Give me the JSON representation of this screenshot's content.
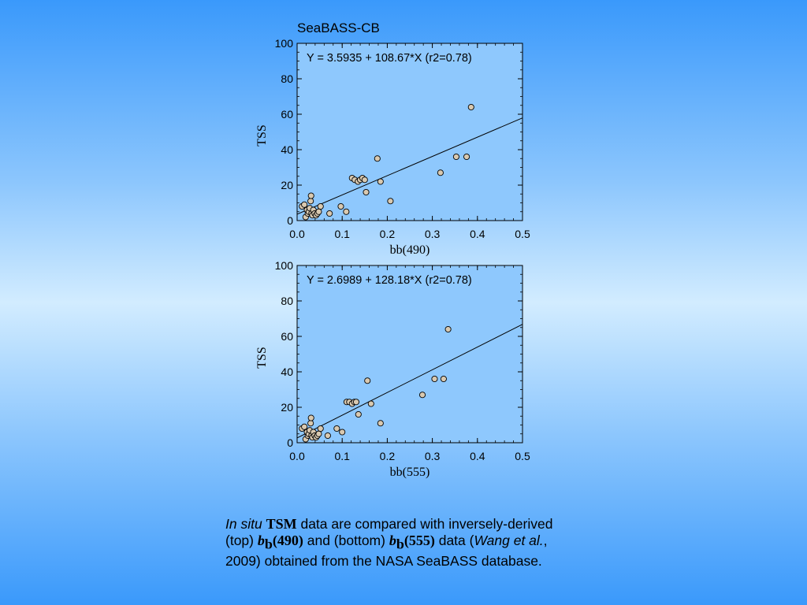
{
  "chart_data": [
    {
      "type": "scatter",
      "title": "SeaBASS-CB",
      "xlabel": "bb(490)",
      "ylabel": "TSS",
      "xlim": [
        0.0,
        0.5
      ],
      "ylim": [
        0,
        100
      ],
      "xticks": [
        "0.0",
        "0.1",
        "0.2",
        "0.3",
        "0.4",
        "0.5"
      ],
      "yticks": [
        "0",
        "20",
        "40",
        "60",
        "80",
        "100"
      ],
      "annotation": "Y = 3.5935 + 108.67*X (r2=0.78)",
      "fit": {
        "intercept": 3.5935,
        "slope": 108.67
      },
      "points": [
        [
          0.011,
          8
        ],
        [
          0.016,
          9
        ],
        [
          0.019,
          2
        ],
        [
          0.022,
          6
        ],
        [
          0.024,
          4
        ],
        [
          0.026,
          5
        ],
        [
          0.028,
          7
        ],
        [
          0.03,
          11
        ],
        [
          0.031,
          14
        ],
        [
          0.032,
          4
        ],
        [
          0.034,
          3
        ],
        [
          0.036,
          6
        ],
        [
          0.039,
          4
        ],
        [
          0.042,
          3
        ],
        [
          0.045,
          4
        ],
        [
          0.048,
          5
        ],
        [
          0.052,
          8
        ],
        [
          0.072,
          4
        ],
        [
          0.097,
          8
        ],
        [
          0.109,
          5
        ],
        [
          0.122,
          24
        ],
        [
          0.128,
          23
        ],
        [
          0.135,
          22
        ],
        [
          0.14,
          23
        ],
        [
          0.145,
          24
        ],
        [
          0.15,
          23
        ],
        [
          0.153,
          16
        ],
        [
          0.178,
          35
        ],
        [
          0.185,
          22
        ],
        [
          0.207,
          11
        ],
        [
          0.318,
          27
        ],
        [
          0.353,
          36
        ],
        [
          0.376,
          36
        ],
        [
          0.386,
          64
        ]
      ]
    },
    {
      "type": "scatter",
      "title": "",
      "xlabel": "bb(555)",
      "ylabel": "TSS",
      "xlim": [
        0.0,
        0.5
      ],
      "ylim": [
        0,
        100
      ],
      "xticks": [
        "0.0",
        "0.1",
        "0.2",
        "0.3",
        "0.4",
        "0.5"
      ],
      "yticks": [
        "0",
        "20",
        "40",
        "60",
        "80",
        "100"
      ],
      "annotation": "Y = 2.6989 + 128.18*X (r2=0.78)",
      "fit": {
        "intercept": 2.6989,
        "slope": 128.18
      },
      "points": [
        [
          0.011,
          8
        ],
        [
          0.016,
          9
        ],
        [
          0.019,
          2
        ],
        [
          0.022,
          6
        ],
        [
          0.024,
          4
        ],
        [
          0.026,
          5
        ],
        [
          0.028,
          7
        ],
        [
          0.03,
          11
        ],
        [
          0.031,
          14
        ],
        [
          0.032,
          4
        ],
        [
          0.034,
          3
        ],
        [
          0.036,
          6
        ],
        [
          0.039,
          4
        ],
        [
          0.042,
          3
        ],
        [
          0.045,
          4
        ],
        [
          0.048,
          5
        ],
        [
          0.052,
          8
        ],
        [
          0.068,
          4
        ],
        [
          0.088,
          8
        ],
        [
          0.1,
          6
        ],
        [
          0.11,
          23
        ],
        [
          0.116,
          23
        ],
        [
          0.122,
          22
        ],
        [
          0.127,
          23
        ],
        [
          0.131,
          23
        ],
        [
          0.136,
          16
        ],
        [
          0.156,
          35
        ],
        [
          0.164,
          22
        ],
        [
          0.185,
          11
        ],
        [
          0.278,
          27
        ],
        [
          0.305,
          36
        ],
        [
          0.325,
          36
        ],
        [
          0.335,
          64
        ]
      ]
    }
  ],
  "caption": {
    "in_situ": "In situ",
    "tsm": "TSM",
    "part1": " data are compared with inversely-derived",
    "part2": "(top) ",
    "b": "b",
    "sub_b": "b",
    "val1": "(490)",
    "part3": " and (bottom) ",
    "val2": "(555)",
    "part4": " data (",
    "wang": "Wang et al.",
    "part5": ",",
    "part6": "2009) obtained from the NASA SeaBASS database."
  },
  "colors": {
    "plot_bg": "#8ec8fd",
    "point_fill": "#d9c9b0",
    "axis": "#000000"
  }
}
